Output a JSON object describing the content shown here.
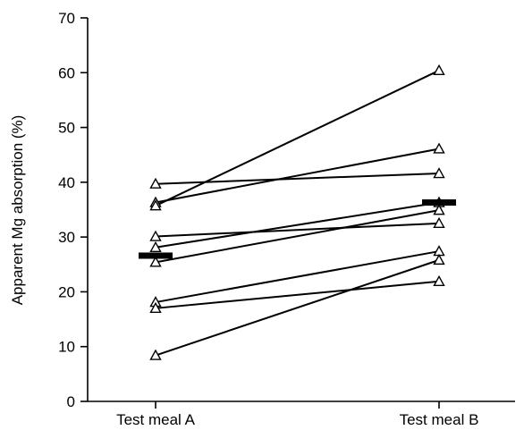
{
  "chart_data": {
    "type": "line",
    "categories": [
      "Test meal A",
      "Test meal B"
    ],
    "ylabel": "Apparent Mg absorption (%)",
    "ylim": [
      0,
      70
    ],
    "yticks": [
      0,
      10,
      20,
      30,
      40,
      50,
      60,
      70
    ],
    "grid": false,
    "marker": "open-triangle",
    "series": [
      {
        "values": [
          39.7,
          41.6
        ]
      },
      {
        "values": [
          36.3,
          46.1
        ]
      },
      {
        "values": [
          35.7,
          60.4
        ]
      },
      {
        "values": [
          30.1,
          32.5
        ]
      },
      {
        "values": [
          28.1,
          36.3
        ]
      },
      {
        "values": [
          25.4,
          34.9
        ]
      },
      {
        "values": [
          18.1,
          27.4
        ]
      },
      {
        "values": [
          17.0,
          21.9
        ]
      },
      {
        "values": [
          8.4,
          25.8
        ]
      }
    ],
    "means": [
      26.6,
      36.3
    ]
  }
}
